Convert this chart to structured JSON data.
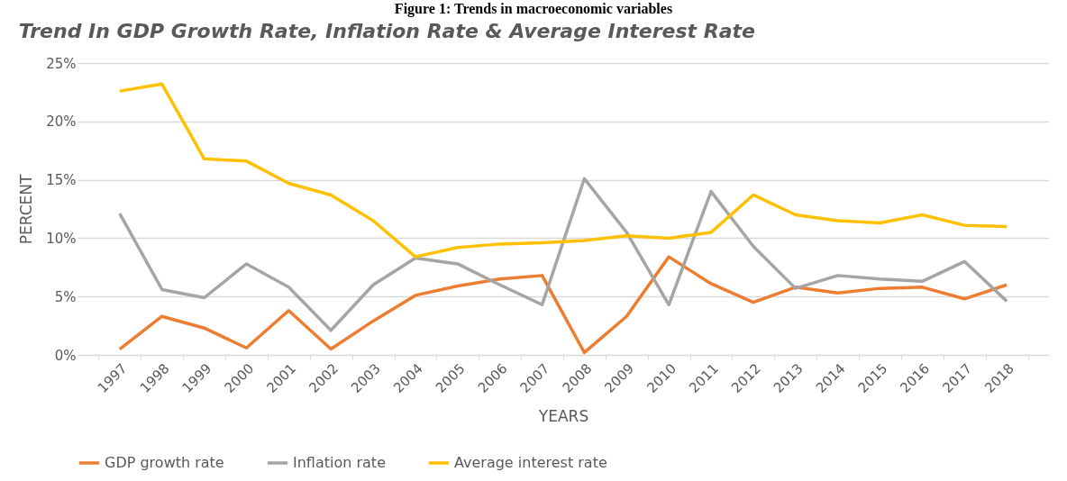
{
  "chart_data": {
    "type": "line",
    "title": "Trend In GDP Growth Rate, Inflation Rate & Average Interest Rate",
    "xlabel": "YEARS",
    "ylabel": "PERCENT",
    "annotations": [
      "Figure 1: Trends in macroeconomic variables"
    ],
    "categories": [
      "1997",
      "1998",
      "1999",
      "2000",
      "2001",
      "2002",
      "2003",
      "2004",
      "2005",
      "2006",
      "2007",
      "2008",
      "2009",
      "2010",
      "2011",
      "2012",
      "2013",
      "2014",
      "2015",
      "2016",
      "2017",
      "2018"
    ],
    "series": [
      {
        "name": "GDP growth rate",
        "color": "#ed7d31",
        "values": [
          0.5,
          3.3,
          2.3,
          0.6,
          3.8,
          0.5,
          2.9,
          5.1,
          5.9,
          6.5,
          6.8,
          0.2,
          3.3,
          8.4,
          6.1,
          4.5,
          5.8,
          5.3,
          5.7,
          5.8,
          4.8,
          6.0
        ]
      },
      {
        "name": "Inflation rate",
        "color": "#a5a5a5",
        "values": [
          12.1,
          5.6,
          4.9,
          7.8,
          5.8,
          2.1,
          6.0,
          8.3,
          7.8,
          6.0,
          4.3,
          15.1,
          10.5,
          4.3,
          14.0,
          9.3,
          5.7,
          6.8,
          6.5,
          6.3,
          8.0,
          4.6
        ]
      },
      {
        "name": "Average interest rate",
        "color": "#ffc000",
        "values": [
          22.6,
          23.2,
          16.8,
          16.6,
          14.7,
          13.7,
          11.5,
          8.4,
          9.2,
          9.5,
          9.6,
          9.8,
          10.2,
          10.0,
          10.5,
          13.7,
          12.0,
          11.5,
          11.3,
          12.0,
          11.1,
          11.0
        ]
      }
    ],
    "ylim": [
      0,
      25
    ],
    "yticks": [
      {
        "value": 0,
        "label": "0%"
      },
      {
        "value": 5,
        "label": "5%"
      },
      {
        "value": 10,
        "label": "10%"
      },
      {
        "value": 15,
        "label": "15%"
      },
      {
        "value": 20,
        "label": "20%"
      },
      {
        "value": 25,
        "label": "25%"
      }
    ],
    "grid": "y",
    "legend": "bottom",
    "marker": "none",
    "line_style": "solid"
  }
}
